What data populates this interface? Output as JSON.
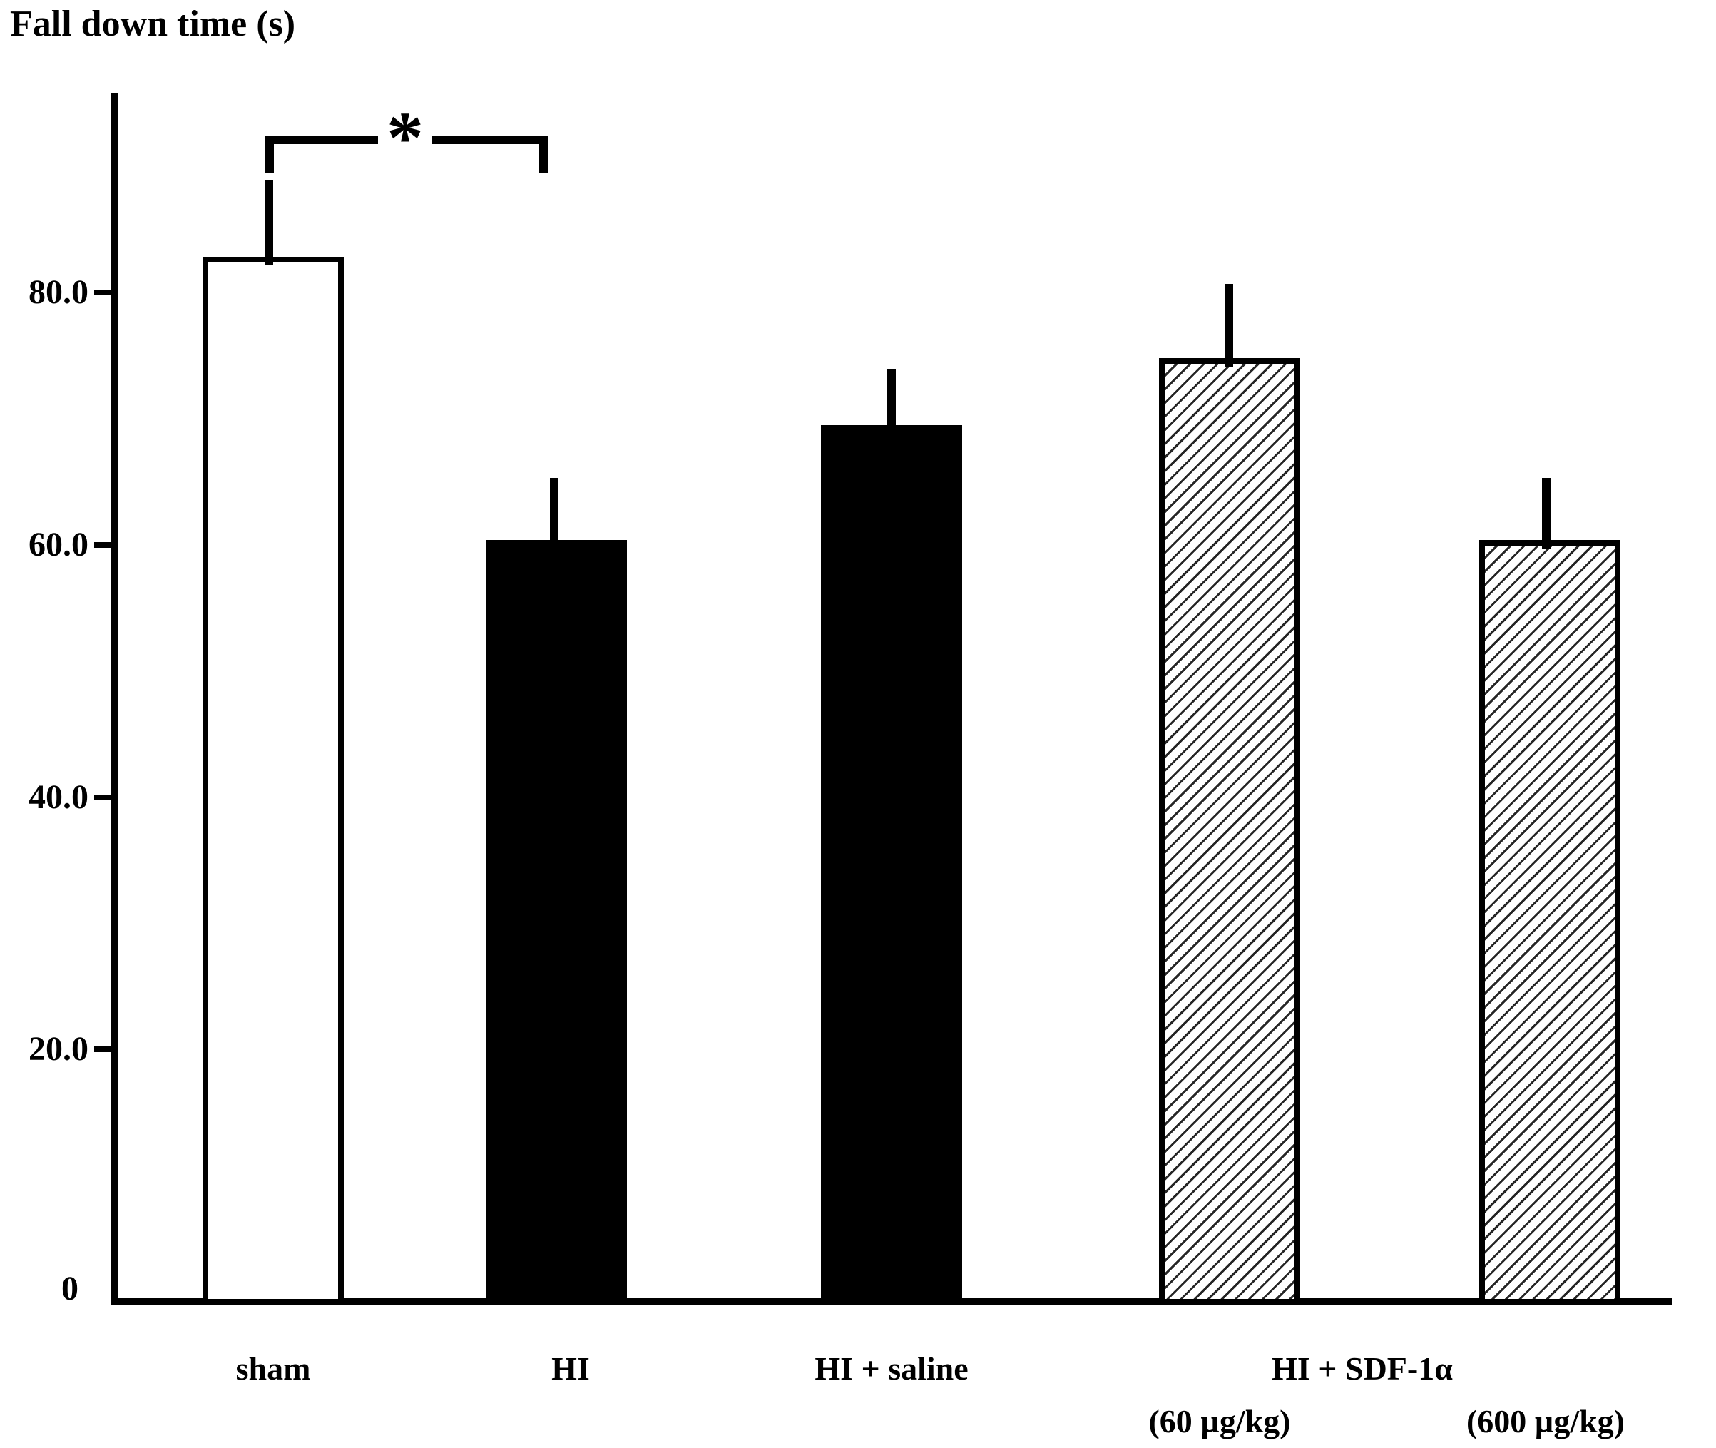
{
  "title": "Fall down time (s)",
  "significance": {
    "symbol": "*",
    "compares": [
      "sham",
      "HI"
    ]
  },
  "chart_data": {
    "type": "bar",
    "title": "Fall down time (s)",
    "ylabel": "Fall down time (s)",
    "xlabel": "",
    "categories": [
      "sham",
      "HI",
      "HI + saline",
      "HI + SDF-1α (60 µg/kg)",
      "HI + SDF-1α (600 µg/kg)"
    ],
    "values": [
      82.8,
      60.4,
      69.5,
      74.8,
      60.4
    ],
    "errors_plus": [
      6.1,
      4.9,
      4.4,
      5.9,
      4.9
    ],
    "bar_styles": [
      "open",
      "solid",
      "solid",
      "hatched",
      "hatched"
    ],
    "ylim": [
      0,
      96
    ],
    "grid": false,
    "legend": false,
    "y_ticks": [
      {
        "value": 80,
        "label": "80.0"
      },
      {
        "value": 60,
        "label": "60.0"
      },
      {
        "value": 40,
        "label": "40.0"
      },
      {
        "value": 20,
        "label": "20.0"
      },
      {
        "value": 0,
        "label": "0"
      }
    ],
    "x_tick_rows": {
      "row1": [
        "sham",
        "HI",
        "HI + saline",
        "HI + SDF-1α"
      ],
      "row2": [
        "(60 µg/kg)",
        "(600 µg/kg)"
      ]
    },
    "annotations": [
      {
        "type": "significance-bracket",
        "label": "*",
        "from": "sham",
        "to": "HI",
        "at_value": 92
      }
    ]
  }
}
